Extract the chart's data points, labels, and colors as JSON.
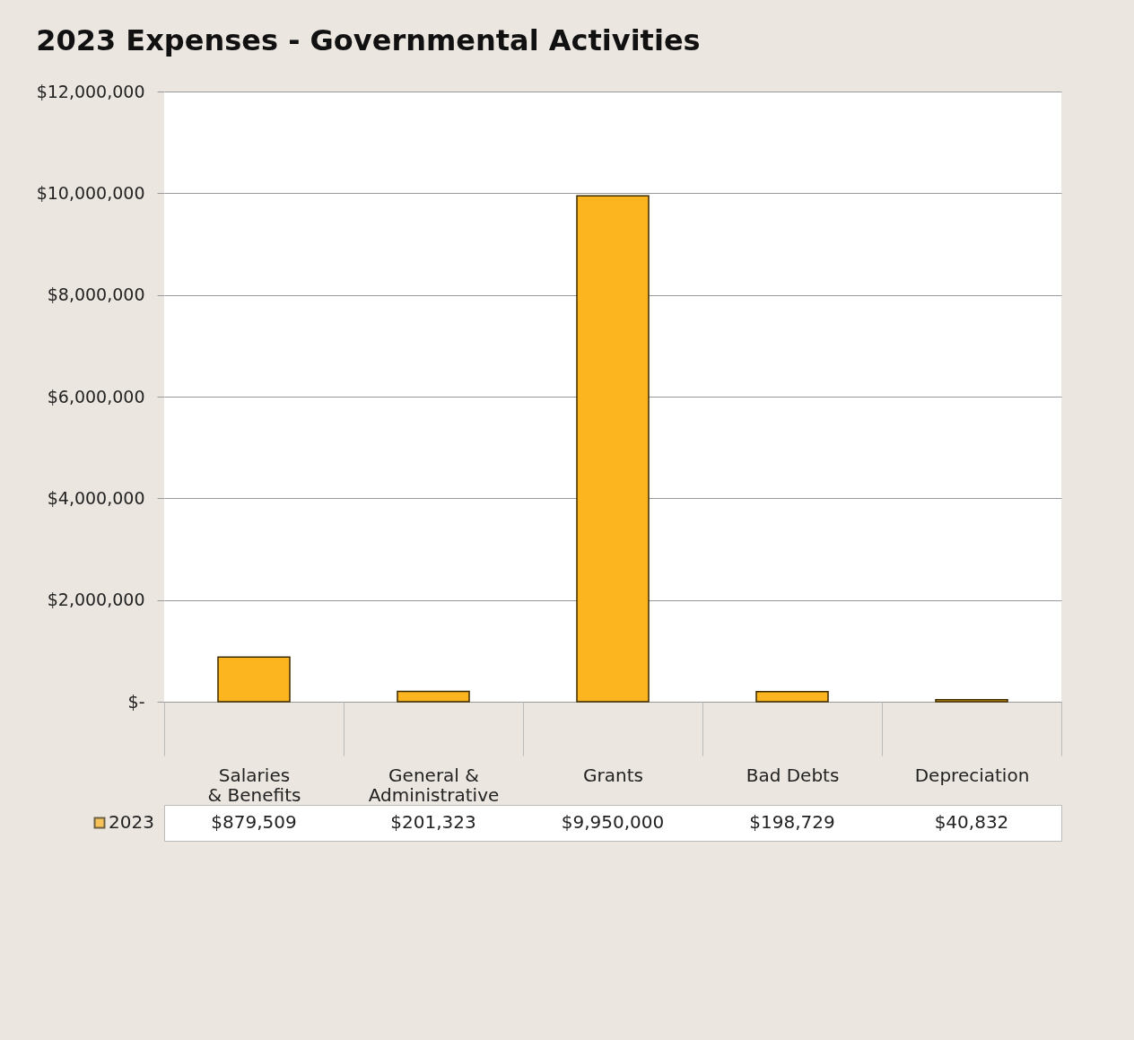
{
  "chart_data": {
    "type": "bar",
    "title": "2023 Expenses - Governmental Activities",
    "categories": [
      "Salaries & Benefits",
      "General & Administrative",
      "Grants",
      "Bad Debts",
      "Depreciation"
    ],
    "series": [
      {
        "name": "2023",
        "color": "#fdb51f",
        "values": [
          879509,
          201323,
          9950000,
          198729,
          40832
        ],
        "value_labels": [
          "$879,509",
          "$201,323",
          "$9,950,000",
          "$198,729",
          "$40,832"
        ]
      }
    ],
    "ylim": [
      0,
      12000000
    ],
    "yticks": [
      {
        "value": 0,
        "label": "$-"
      },
      {
        "value": 2000000,
        "label": "$2,000,000"
      },
      {
        "value": 4000000,
        "label": "$4,000,000"
      },
      {
        "value": 6000000,
        "label": "$6,000,000"
      },
      {
        "value": 8000000,
        "label": "$8,000,000"
      },
      {
        "value": 10000000,
        "label": "$10,000,000"
      },
      {
        "value": 12000000,
        "label": "$12,000,000"
      }
    ],
    "grid": "y",
    "legend": "bottom"
  }
}
